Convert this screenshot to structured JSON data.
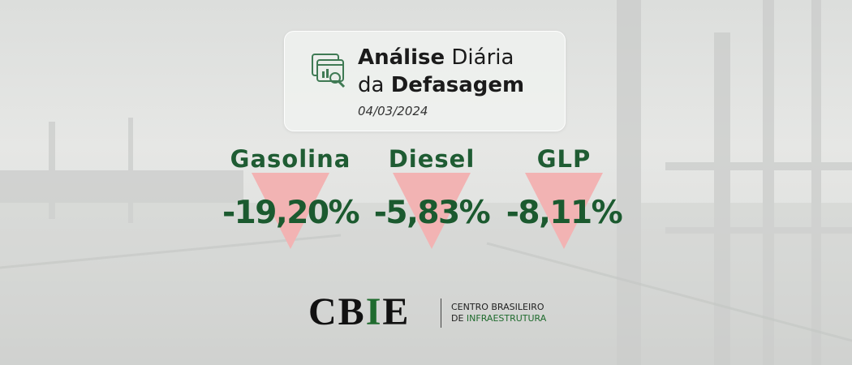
{
  "header": {
    "title_parts": [
      "Análise",
      "Diária",
      "da",
      "Defasagem"
    ],
    "date": "04/03/2024"
  },
  "items": [
    {
      "name": "Gasolina",
      "value": "-19,20%"
    },
    {
      "name": "Diesel",
      "value": "-5,83%"
    },
    {
      "name": "GLP",
      "value": "-8,11%"
    }
  ],
  "logo": {
    "letters": [
      "C",
      "B",
      "I",
      "E"
    ],
    "tagline": [
      "CENTRO BRASILEIRO",
      "DE",
      "INFRAESTRUTURA"
    ]
  }
}
